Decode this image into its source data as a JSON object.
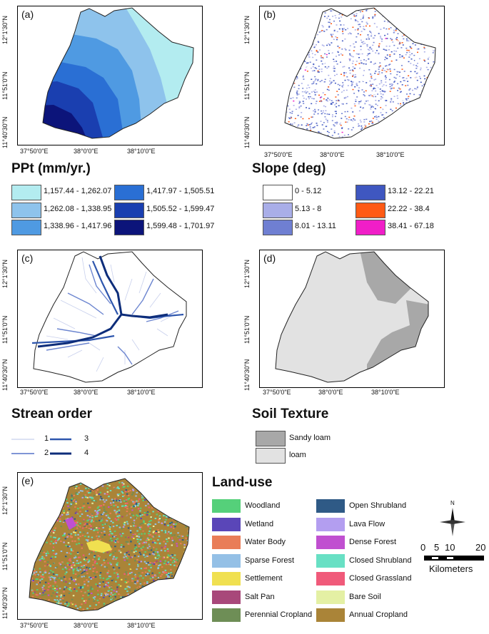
{
  "panels": {
    "a": {
      "label": "(a)",
      "title": "PPt (mm/yr.)",
      "legend": [
        {
          "label": "1,157.44 - 1,262.07",
          "color": "#b3ecf0"
        },
        {
          "label": "1,262.08 - 1,338.95",
          "color": "#8ec3ec"
        },
        {
          "label": "1,338.96 - 1,417.96",
          "color": "#4f9ae2"
        },
        {
          "label": "1,417.97 - 1,505.51",
          "color": "#2a6fd4"
        },
        {
          "label": "1,505.52 - 1,599.47",
          "color": "#1a3fb0"
        },
        {
          "label": "1,599.48 - 1,701.97",
          "color": "#0c147a"
        }
      ]
    },
    "b": {
      "label": "(b)",
      "title": "Slope (deg)",
      "legend": [
        {
          "label": "0 - 5.12",
          "color": "#ffffff"
        },
        {
          "label": "5.13 - 8",
          "color": "#a9aee8"
        },
        {
          "label": "8.01 - 13.11",
          "color": "#6f7fd2"
        },
        {
          "label": "13.12 - 22.21",
          "color": "#3f57c0"
        },
        {
          "label": "22.22 - 38.4",
          "color": "#ff5a14"
        },
        {
          "label": "38.41 - 67.18",
          "color": "#f01ec8"
        }
      ]
    },
    "c": {
      "label": "(c)",
      "title": "Strean order",
      "legend": [
        {
          "label": "1",
          "color": "#c8d0ec"
        },
        {
          "label": "2",
          "color": "#6d86d0"
        },
        {
          "label": "3",
          "color": "#2e56ad"
        },
        {
          "label": "4",
          "color": "#0d2d7a"
        }
      ]
    },
    "d": {
      "label": "(d)",
      "title": "Soil Texture",
      "legend": [
        {
          "label": "Sandy loam",
          "color": "#a8a8a8"
        },
        {
          "label": "loam",
          "color": "#e2e2e2"
        }
      ]
    },
    "e": {
      "label": "(e)"
    }
  },
  "axes": {
    "y_ticks": [
      "12°1'30\"N",
      "11°51'0\"N",
      "11°40'30\"N"
    ],
    "x_ticks": [
      "37°50'0\"E",
      "38°0'0\"E",
      "38°10'0\"E"
    ]
  },
  "landuse": {
    "title": "Land-use",
    "col1": [
      {
        "label": "Woodland",
        "color": "#55d07a"
      },
      {
        "label": "Wetland",
        "color": "#5a46b8"
      },
      {
        "label": "Water Body",
        "color": "#e97d58"
      },
      {
        "label": "Sparse Forest",
        "color": "#94c0e6"
      },
      {
        "label": "Settlement",
        "color": "#f0e050"
      },
      {
        "label": "Salt Pan",
        "color": "#a8487a"
      },
      {
        "label": "Perennial Cropland",
        "color": "#6e8e56"
      }
    ],
    "col2": [
      {
        "label": "Open Shrubland",
        "color": "#2f5a86"
      },
      {
        "label": "Lava Flow",
        "color": "#b39ef0"
      },
      {
        "label": "Dense Forest",
        "color": "#c050d0"
      },
      {
        "label": "Closed Shrubland",
        "color": "#68e0c4"
      },
      {
        "label": "Closed Grassland",
        "color": "#f05a7a"
      },
      {
        "label": "Bare Soil",
        "color": "#e4f0a4"
      },
      {
        "label": "Annual Cropland",
        "color": "#aa8438"
      }
    ]
  },
  "north_arrow": {
    "label": "N"
  },
  "scale_bar": {
    "ticks": [
      "0",
      "5",
      "10",
      "20"
    ],
    "unit": "Kilometers"
  }
}
